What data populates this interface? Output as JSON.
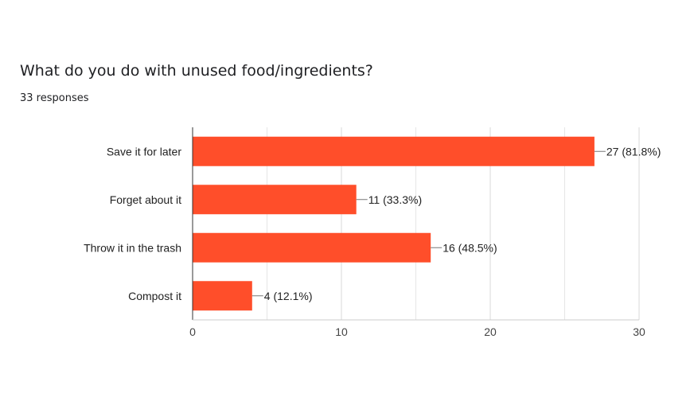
{
  "question": {
    "title": "What do you do with unused food/ingredients?",
    "responses": "33 responses"
  },
  "colors": {
    "bar": "#ff4e2a",
    "grid": "#e6e6e6",
    "axis": "#333333",
    "leader": "#777777"
  },
  "chart_data": {
    "type": "bar",
    "orientation": "horizontal",
    "title": "",
    "xlabel": "",
    "ylabel": "",
    "categories": [
      "Save it for later",
      "Forget about it",
      "Throw it in the trash",
      "Compost it"
    ],
    "values": [
      27,
      11,
      16,
      4
    ],
    "data_labels": [
      "27 (81.8%)",
      "11 (33.3%)",
      "16 (48.5%)",
      "4 (12.1%)"
    ],
    "xlim": [
      0,
      30
    ],
    "xticks": [
      0,
      10,
      20,
      30
    ],
    "minor_gridlines": [
      5,
      15,
      25
    ],
    "grid": true,
    "legend": "none"
  }
}
